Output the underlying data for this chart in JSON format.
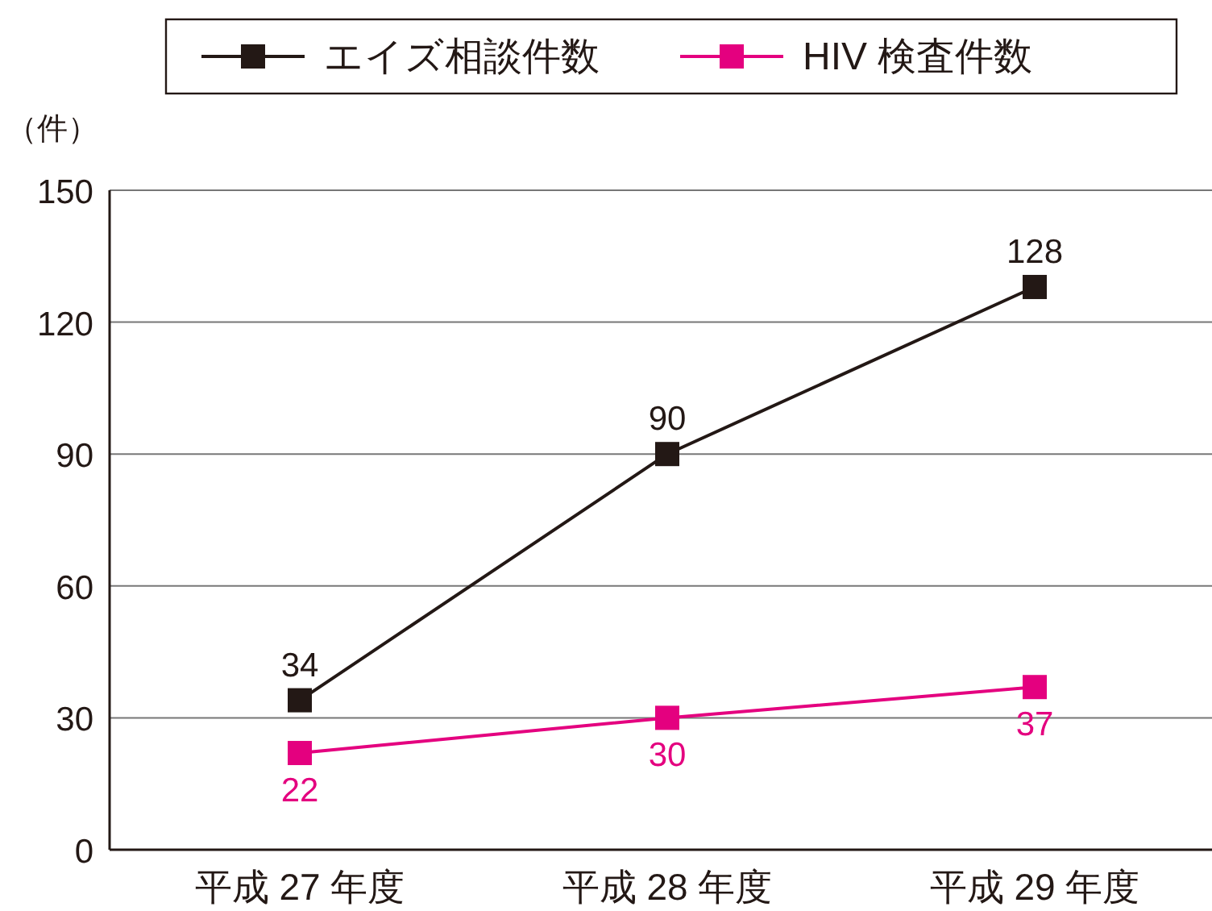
{
  "chart_data": {
    "type": "line",
    "ylabel": "（件）",
    "categories": [
      "平成 27 年度",
      "平成 28 年度",
      "平成 29 年度"
    ],
    "series": [
      {
        "name": "エイズ相談件数",
        "color": "#231815",
        "values": [
          34,
          90,
          128
        ]
      },
      {
        "name": "HIV 検査件数",
        "color": "#e4007f",
        "values": [
          22,
          30,
          37
        ]
      }
    ],
    "ylim": [
      0,
      150
    ],
    "yticks": [
      0,
      30,
      60,
      90,
      120,
      150
    ],
    "grid": "y",
    "legend": "top",
    "marker": "square",
    "data_labels": true
  }
}
